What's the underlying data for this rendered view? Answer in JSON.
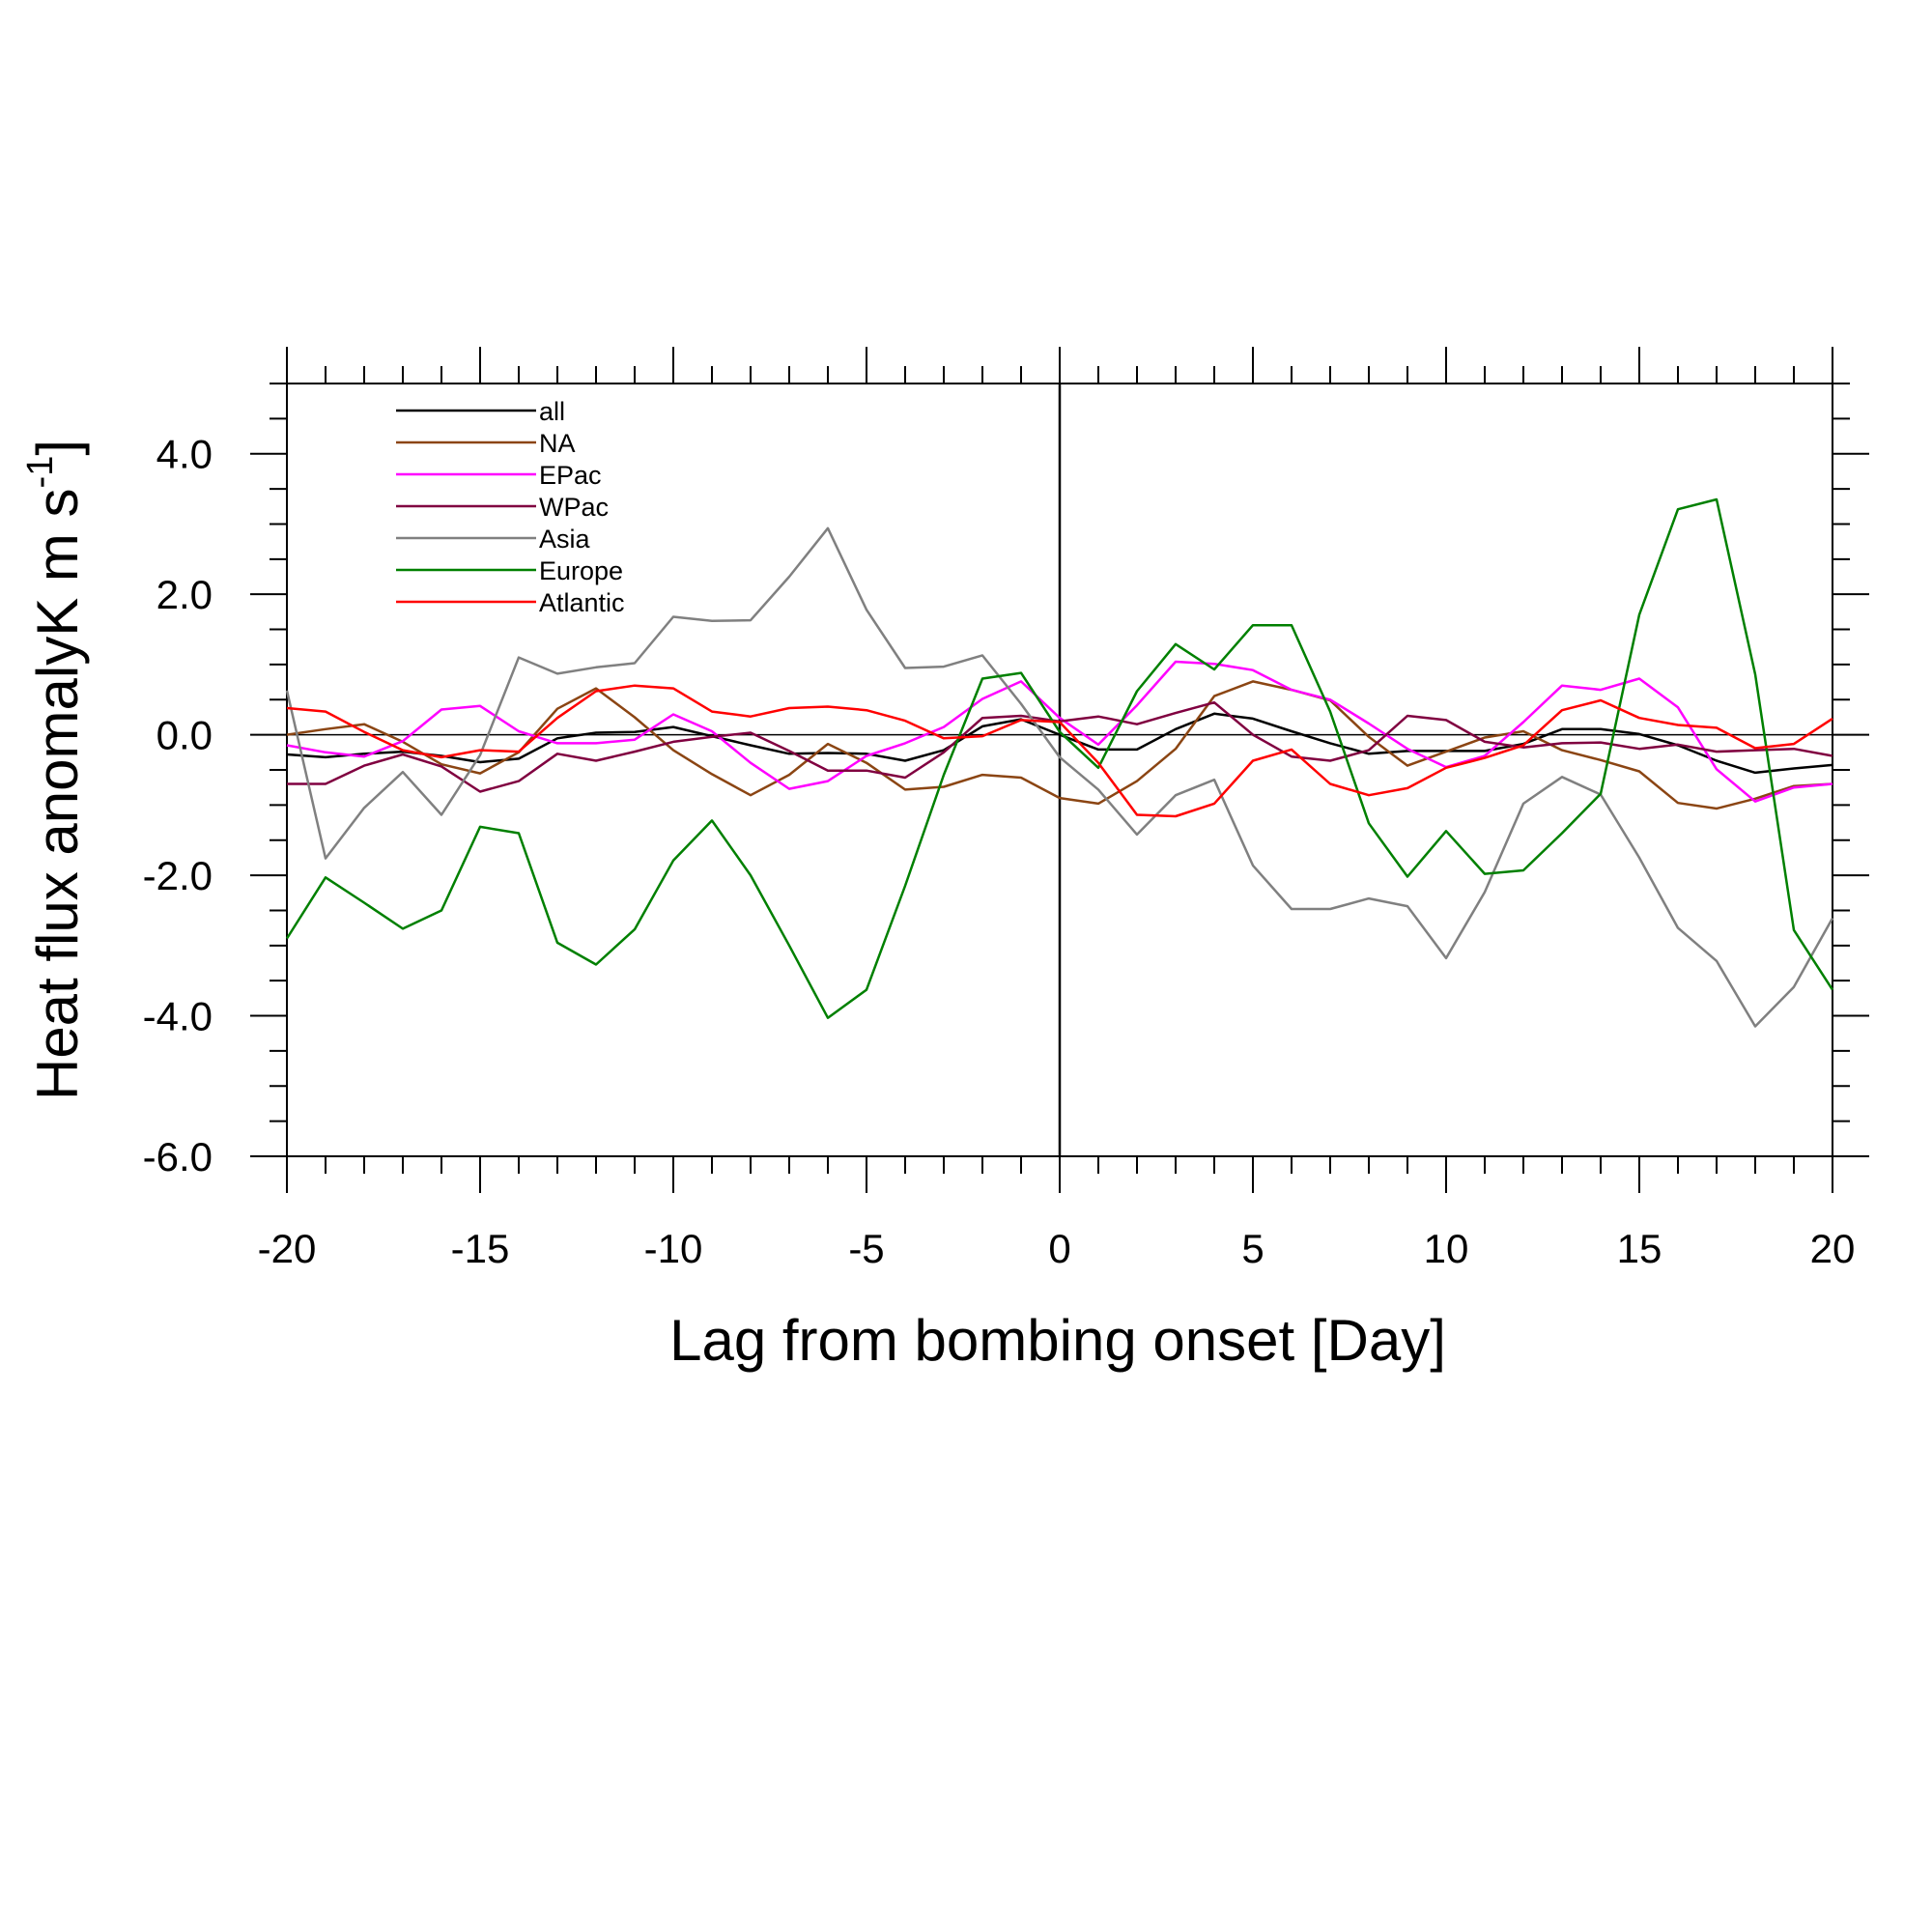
{
  "chart_data": {
    "type": "line",
    "xlabel": "Lag from bombing onset [Day]",
    "ylabel": {
      "main": "Heat flux anomalyK m s",
      "sup": "-1",
      "tail": "]"
    },
    "xlim": [
      -20,
      20
    ],
    "ylim": [
      -6,
      5
    ],
    "x_ticks": [
      -20,
      -15,
      -10,
      -5,
      0,
      5,
      10,
      15,
      20
    ],
    "x_tick_labels": [
      "-20",
      "-15",
      "-10",
      "-5",
      "0",
      "5",
      "10",
      "15",
      "20"
    ],
    "y_ticks": [
      -6,
      -4,
      -2,
      0,
      2,
      4
    ],
    "y_tick_labels": [
      "-6.0",
      "-4.0",
      "-2.0",
      "0.0",
      "2.0",
      "4.0"
    ],
    "grid": false,
    "legend_position": "top-left",
    "reference_lines": {
      "horizontal_at_y": 0,
      "vertical_at_x": 0
    },
    "x": [
      -20,
      -19,
      -18,
      -17,
      -16,
      -15,
      -14,
      -13,
      -12,
      -11,
      -10,
      -9,
      -8,
      -7,
      -6,
      -5,
      -4,
      -3,
      -2,
      -1,
      0,
      1,
      2,
      3,
      4,
      5,
      6,
      7,
      8,
      9,
      10,
      11,
      12,
      13,
      14,
      15,
      16,
      17,
      18,
      19,
      20
    ],
    "series": [
      {
        "name": "all",
        "color": "#000000",
        "values": [
          -0.28,
          -0.32,
          -0.27,
          -0.24,
          -0.3,
          -0.39,
          -0.34,
          -0.05,
          0.03,
          0.04,
          0.11,
          -0.02,
          -0.15,
          -0.27,
          -0.26,
          -0.27,
          -0.37,
          -0.22,
          0.12,
          0.22,
          0.0,
          -0.21,
          -0.21,
          0.08,
          0.3,
          0.23,
          0.05,
          -0.12,
          -0.27,
          -0.23,
          -0.23,
          -0.23,
          -0.13,
          0.08,
          0.08,
          0.01,
          -0.15,
          -0.37,
          -0.54,
          -0.48,
          -0.43
        ]
      },
      {
        "name": "NA",
        "color": "#8B4513",
        "values": [
          0.0,
          0.08,
          0.15,
          -0.1,
          -0.42,
          -0.55,
          -0.25,
          0.37,
          0.66,
          0.25,
          -0.22,
          -0.56,
          -0.86,
          -0.57,
          -0.13,
          -0.4,
          -0.78,
          -0.74,
          -0.57,
          -0.61,
          -0.9,
          -0.98,
          -0.66,
          -0.2,
          0.55,
          0.76,
          0.64,
          0.49,
          -0.03,
          -0.44,
          -0.24,
          -0.04,
          0.05,
          -0.22,
          -0.36,
          -0.52,
          -0.97,
          -1.05,
          -0.91,
          -0.73,
          -0.7
        ]
      },
      {
        "name": "EPac",
        "color": "#FF00FF",
        "values": [
          -0.15,
          -0.25,
          -0.31,
          -0.09,
          0.36,
          0.41,
          0.05,
          -0.12,
          -0.12,
          -0.07,
          0.29,
          0.05,
          -0.4,
          -0.77,
          -0.66,
          -0.3,
          -0.12,
          0.11,
          0.51,
          0.76,
          0.24,
          -0.14,
          0.42,
          1.04,
          1.01,
          0.92,
          0.64,
          0.5,
          0.16,
          -0.2,
          -0.46,
          -0.3,
          0.18,
          0.7,
          0.64,
          0.8,
          0.39,
          -0.49,
          -0.95,
          -0.75,
          -0.7
        ]
      },
      {
        "name": "WPac",
        "color": "#800040",
        "values": [
          -0.7,
          -0.7,
          -0.44,
          -0.28,
          -0.45,
          -0.81,
          -0.66,
          -0.27,
          -0.37,
          -0.24,
          -0.1,
          -0.03,
          0.03,
          -0.23,
          -0.51,
          -0.51,
          -0.61,
          -0.25,
          0.24,
          0.27,
          0.19,
          0.26,
          0.15,
          0.31,
          0.46,
          0.0,
          -0.31,
          -0.37,
          -0.22,
          0.27,
          0.21,
          -0.1,
          -0.18,
          -0.12,
          -0.11,
          -0.2,
          -0.14,
          -0.24,
          -0.22,
          -0.2,
          -0.3
        ]
      },
      {
        "name": "Asia",
        "color": "#808080",
        "values": [
          0.63,
          -1.76,
          -1.04,
          -0.53,
          -1.14,
          -0.29,
          1.1,
          0.87,
          0.96,
          1.02,
          1.68,
          1.62,
          1.63,
          2.25,
          2.94,
          1.78,
          0.95,
          0.97,
          1.13,
          0.44,
          -0.32,
          -0.78,
          -1.42,
          -0.86,
          -0.64,
          -1.86,
          -2.48,
          -2.48,
          -2.33,
          -2.44,
          -3.18,
          -2.24,
          -0.98,
          -0.6,
          -0.85,
          -1.75,
          -2.75,
          -3.22,
          -4.15,
          -3.59,
          -2.61
        ]
      },
      {
        "name": "Europe",
        "color": "#008000",
        "values": [
          -2.9,
          -2.03,
          -2.39,
          -2.76,
          -2.5,
          -1.31,
          -1.4,
          -2.96,
          -3.27,
          -2.77,
          -1.79,
          -1.22,
          -2.0,
          -3.0,
          -4.03,
          -3.63,
          -2.15,
          -0.57,
          0.8,
          0.88,
          0.04,
          -0.47,
          0.62,
          1.29,
          0.93,
          1.56,
          1.56,
          0.33,
          -1.26,
          -2.02,
          -1.37,
          -1.98,
          -1.93,
          -1.4,
          -0.84,
          1.71,
          3.21,
          3.35,
          0.86,
          -2.78,
          -3.63
        ]
      },
      {
        "name": "Atlantic",
        "color": "#FF0000",
        "values": [
          0.38,
          0.33,
          0.04,
          -0.22,
          -0.32,
          -0.22,
          -0.24,
          0.24,
          0.62,
          0.7,
          0.66,
          0.33,
          0.26,
          0.38,
          0.4,
          0.35,
          0.2,
          -0.05,
          -0.02,
          0.21,
          0.18,
          -0.4,
          -1.14,
          -1.16,
          -0.98,
          -0.37,
          -0.21,
          -0.7,
          -0.86,
          -0.76,
          -0.47,
          -0.33,
          -0.15,
          0.35,
          0.49,
          0.24,
          0.14,
          0.1,
          -0.19,
          -0.13,
          0.23
        ]
      }
    ]
  }
}
